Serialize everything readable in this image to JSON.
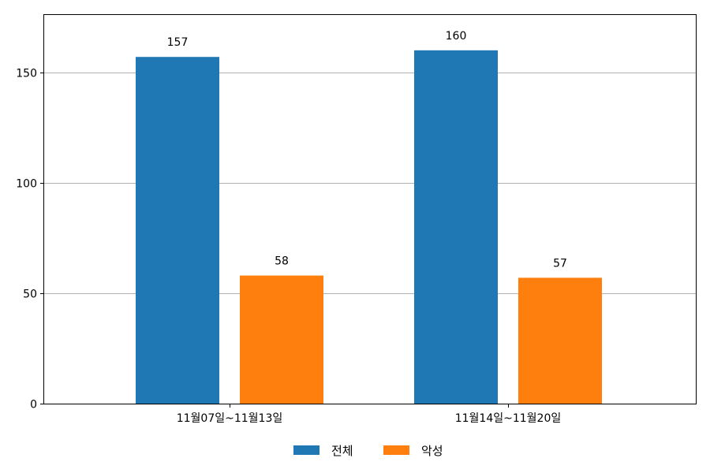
{
  "chart_data": {
    "type": "bar",
    "categories": [
      "11월07일~11월13일",
      "11월14일~11월20일"
    ],
    "series": [
      {
        "name": "전체",
        "values": [
          157,
          160
        ],
        "color": "#1f77b4"
      },
      {
        "name": "악성",
        "values": [
          58,
          57
        ],
        "color": "#ff7f0e"
      }
    ],
    "yticks": [
      0,
      50,
      100,
      150
    ],
    "ylim": [
      0,
      176
    ],
    "grid": "y",
    "legend": "bottom-center",
    "data_labels": true
  }
}
